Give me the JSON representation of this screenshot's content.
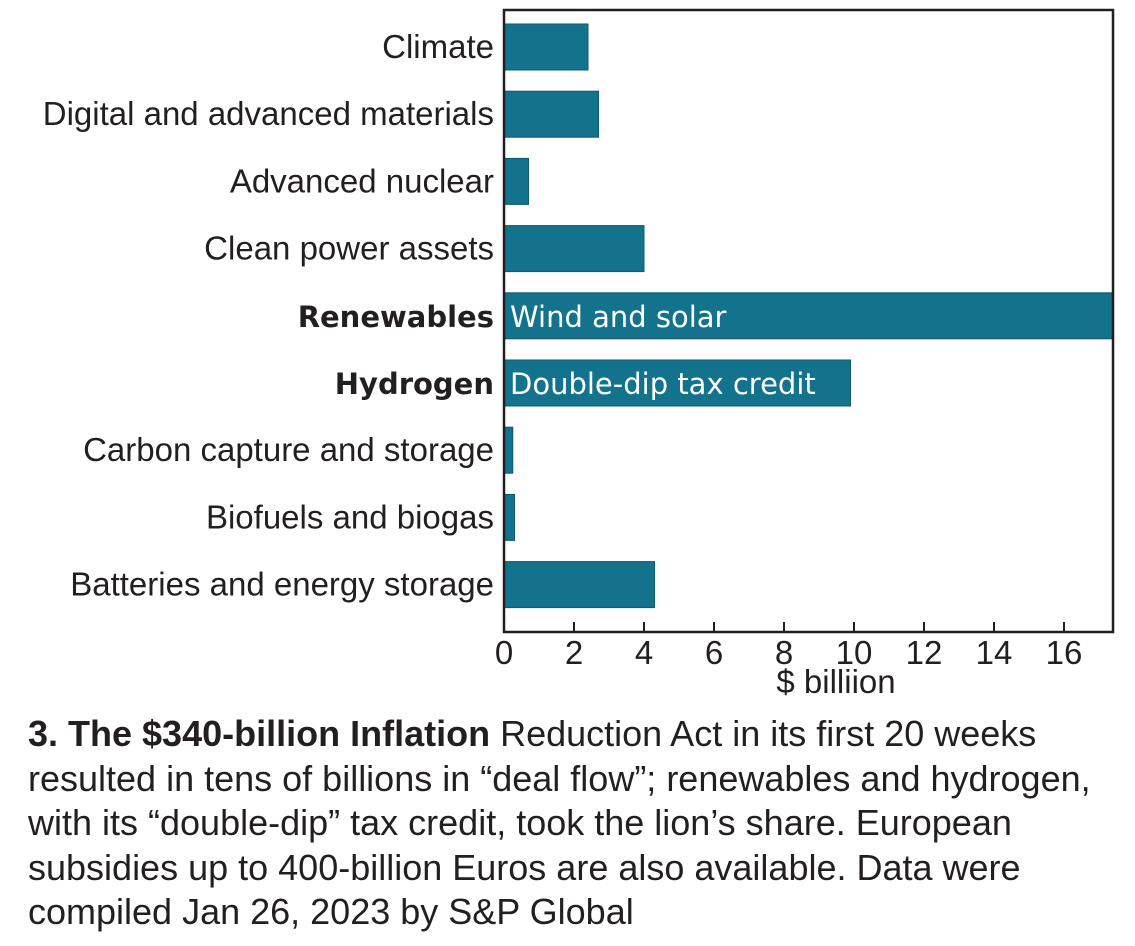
{
  "chart_data": {
    "type": "bar",
    "orientation": "horizontal",
    "categories": [
      "Climate",
      "Digital and advanced materials",
      "Advanced nuclear",
      "Clean power assets",
      "Renewables",
      "Hydrogen",
      "Carbon capture and storage",
      "Biofuels and biogas",
      "Batteries and energy storage"
    ],
    "bold_categories": [
      "Renewables",
      "Hydrogen"
    ],
    "values": [
      2.4,
      2.7,
      0.7,
      4.0,
      17.4,
      9.9,
      0.25,
      0.3,
      4.3
    ],
    "bar_annotations": [
      "",
      "",
      "",
      "",
      "Wind and solar",
      "Double-dip tax credit",
      "",
      "",
      ""
    ],
    "xlabel": "$ billiion",
    "xlim": [
      0,
      17.4
    ],
    "xticks": [
      0,
      2,
      4,
      6,
      8,
      10,
      12,
      14,
      16
    ],
    "grid": false,
    "bar_color": "#13728c"
  },
  "caption": {
    "lead": "3. The $340-billion Inflation",
    "text": " Reduction Act in its first 20 weeks resulted in tens of billions in “deal flow”; renewables and hydrogen, with its “double-dip” tax credit, took the lion’s share. European subsidies up to 400-billion Euros are also available. Data were compiled Jan 26, 2023 by S&P Global"
  }
}
